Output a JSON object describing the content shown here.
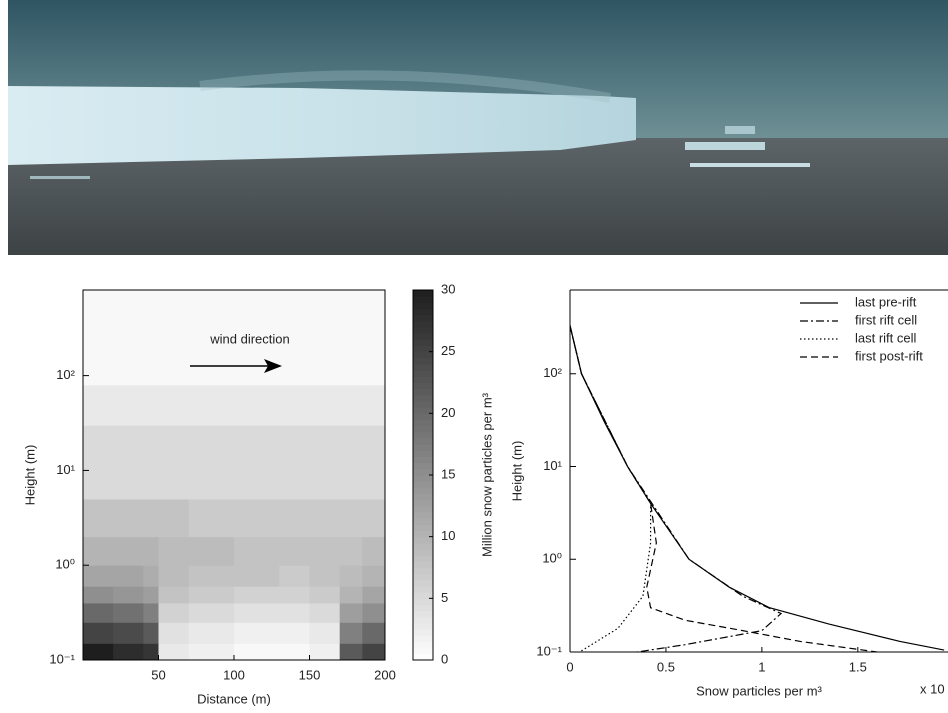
{
  "chart_data": [
    {
      "type": "contour",
      "annotation": "wind direction",
      "xlabel": "Distance (m)",
      "ylabel": "Height (m)",
      "colorbar_label": "Million snow particles per m³",
      "xedges": [
        0,
        20,
        40,
        50,
        70,
        100,
        130,
        150,
        170,
        185,
        200
      ],
      "yedges": [
        0.1,
        0.15,
        0.25,
        0.4,
        0.6,
        1,
        2,
        5,
        30,
        80,
        800
      ],
      "z": [
        [
          30,
          28,
          27,
          3,
          2,
          1,
          1,
          2,
          22,
          25
        ],
        [
          25,
          24,
          22,
          4,
          3,
          2,
          2,
          3,
          17,
          20
        ],
        [
          20,
          19,
          17,
          6,
          5,
          4,
          4,
          5,
          13,
          15
        ],
        [
          15,
          14,
          13,
          8,
          7,
          6,
          6,
          7,
          10,
          12
        ],
        [
          12,
          12,
          11,
          9,
          8,
          8,
          7,
          8,
          9,
          10
        ],
        [
          10,
          10,
          10,
          9,
          9,
          8,
          8,
          8,
          8,
          9
        ],
        [
          8,
          8,
          8,
          8,
          7,
          7,
          7,
          7,
          7,
          7
        ],
        [
          5,
          5,
          5,
          5,
          5,
          5,
          5,
          5,
          5,
          5
        ],
        [
          3,
          3,
          3,
          3,
          3,
          3,
          3,
          3,
          3,
          3
        ],
        [
          1,
          1,
          1,
          1,
          1,
          1,
          1,
          1,
          1,
          1
        ]
      ],
      "xlim": [
        0,
        200
      ],
      "xticks": [
        50,
        100,
        150,
        200
      ],
      "ylim": [
        0.1,
        800
      ],
      "ylog": true,
      "yticks": [
        {
          "value": 0.1,
          "label": "10⁻¹"
        },
        {
          "value": 1,
          "label": "10⁰"
        },
        {
          "value": 10,
          "label": "10¹"
        },
        {
          "value": 100,
          "label": "10²"
        }
      ],
      "clim": [
        0,
        30
      ],
      "cticks": [
        0,
        5,
        10,
        15,
        20,
        25,
        30
      ]
    },
    {
      "type": "line",
      "xlabel": "Snow particles per m³",
      "xscale_note": "x 10",
      "ylabel": "Height (m)",
      "xlim": [
        0,
        1.97
      ],
      "xticks": [
        0,
        0.5,
        1,
        1.5
      ],
      "ylim": [
        0.1,
        800
      ],
      "ylog": true,
      "yticks": [
        {
          "value": 0.1,
          "label": "10⁻¹"
        },
        {
          "value": 1,
          "label": "10⁰"
        },
        {
          "value": 10,
          "label": "10¹"
        },
        {
          "value": 100,
          "label": "10²"
        }
      ],
      "legend": "upper right",
      "series": [
        {
          "name": "last pre-rift",
          "color": "#000000",
          "dash": "solid",
          "x": [
            0,
            0.06,
            0.18,
            0.3,
            0.42,
            0.62,
            0.83,
            1.04,
            1.35,
            1.72,
            1.95
          ],
          "values": [
            330,
            100,
            30,
            10,
            4,
            1,
            0.5,
            0.3,
            0.2,
            0.13,
            0.105
          ]
        },
        {
          "name": "first rift cell",
          "color": "#000000",
          "dash": "dashdot",
          "x": [
            0,
            0.06,
            0.3,
            0.62,
            0.9,
            1.1,
            1.0,
            0.6,
            0.35
          ],
          "values": [
            330,
            100,
            10,
            1,
            0.4,
            0.26,
            0.17,
            0.12,
            0.1
          ]
        },
        {
          "name": "last rift cell",
          "color": "#000000",
          "dash": "dotted",
          "x": [
            0,
            0.06,
            0.3,
            0.42,
            0.42,
            0.38,
            0.25,
            0.05
          ],
          "values": [
            330,
            100,
            10,
            4,
            1.5,
            0.4,
            0.18,
            0.1
          ]
        },
        {
          "name": "first post-rift",
          "color": "#000000",
          "dash": "dashed",
          "x": [
            0,
            0.06,
            0.3,
            0.42,
            0.45,
            0.4,
            0.42,
            0.6,
            0.9,
            1.2,
            1.6
          ],
          "values": [
            330,
            100,
            10,
            4,
            1.5,
            0.5,
            0.3,
            0.22,
            0.17,
            0.13,
            0.1
          ]
        }
      ]
    }
  ]
}
